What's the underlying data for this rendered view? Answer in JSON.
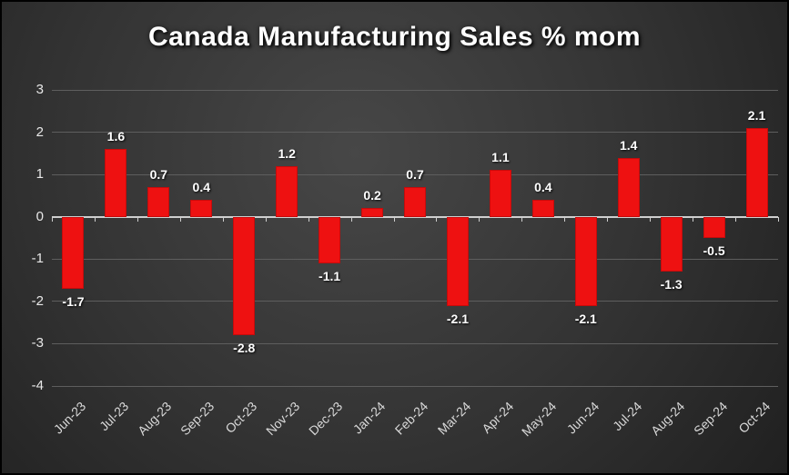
{
  "chart_data": {
    "type": "bar",
    "title": "Canada Manufacturing Sales % mom",
    "categories": [
      "Jun-23",
      "Jul-23",
      "Aug-23",
      "Sep-23",
      "Oct-23",
      "Nov-23",
      "Dec-23",
      "Jan-24",
      "Feb-24",
      "Mar-24",
      "Apr-24",
      "May-24",
      "Jun-24",
      "Jul-24",
      "Aug-24",
      "Sep-24",
      "Oct-24"
    ],
    "values": [
      -1.7,
      1.6,
      0.7,
      0.4,
      -2.8,
      1.2,
      -1.1,
      0.2,
      0.7,
      -2.1,
      1.1,
      0.4,
      -2.1,
      1.4,
      -1.3,
      -0.5,
      2.1
    ],
    "ylim": [
      -4,
      3
    ],
    "yticks": [
      3,
      2,
      1,
      0,
      -1,
      -2,
      -3,
      -4
    ],
    "grid": true,
    "legend": false,
    "bar_color": "#ee1111",
    "xlabel": "",
    "ylabel": ""
  }
}
